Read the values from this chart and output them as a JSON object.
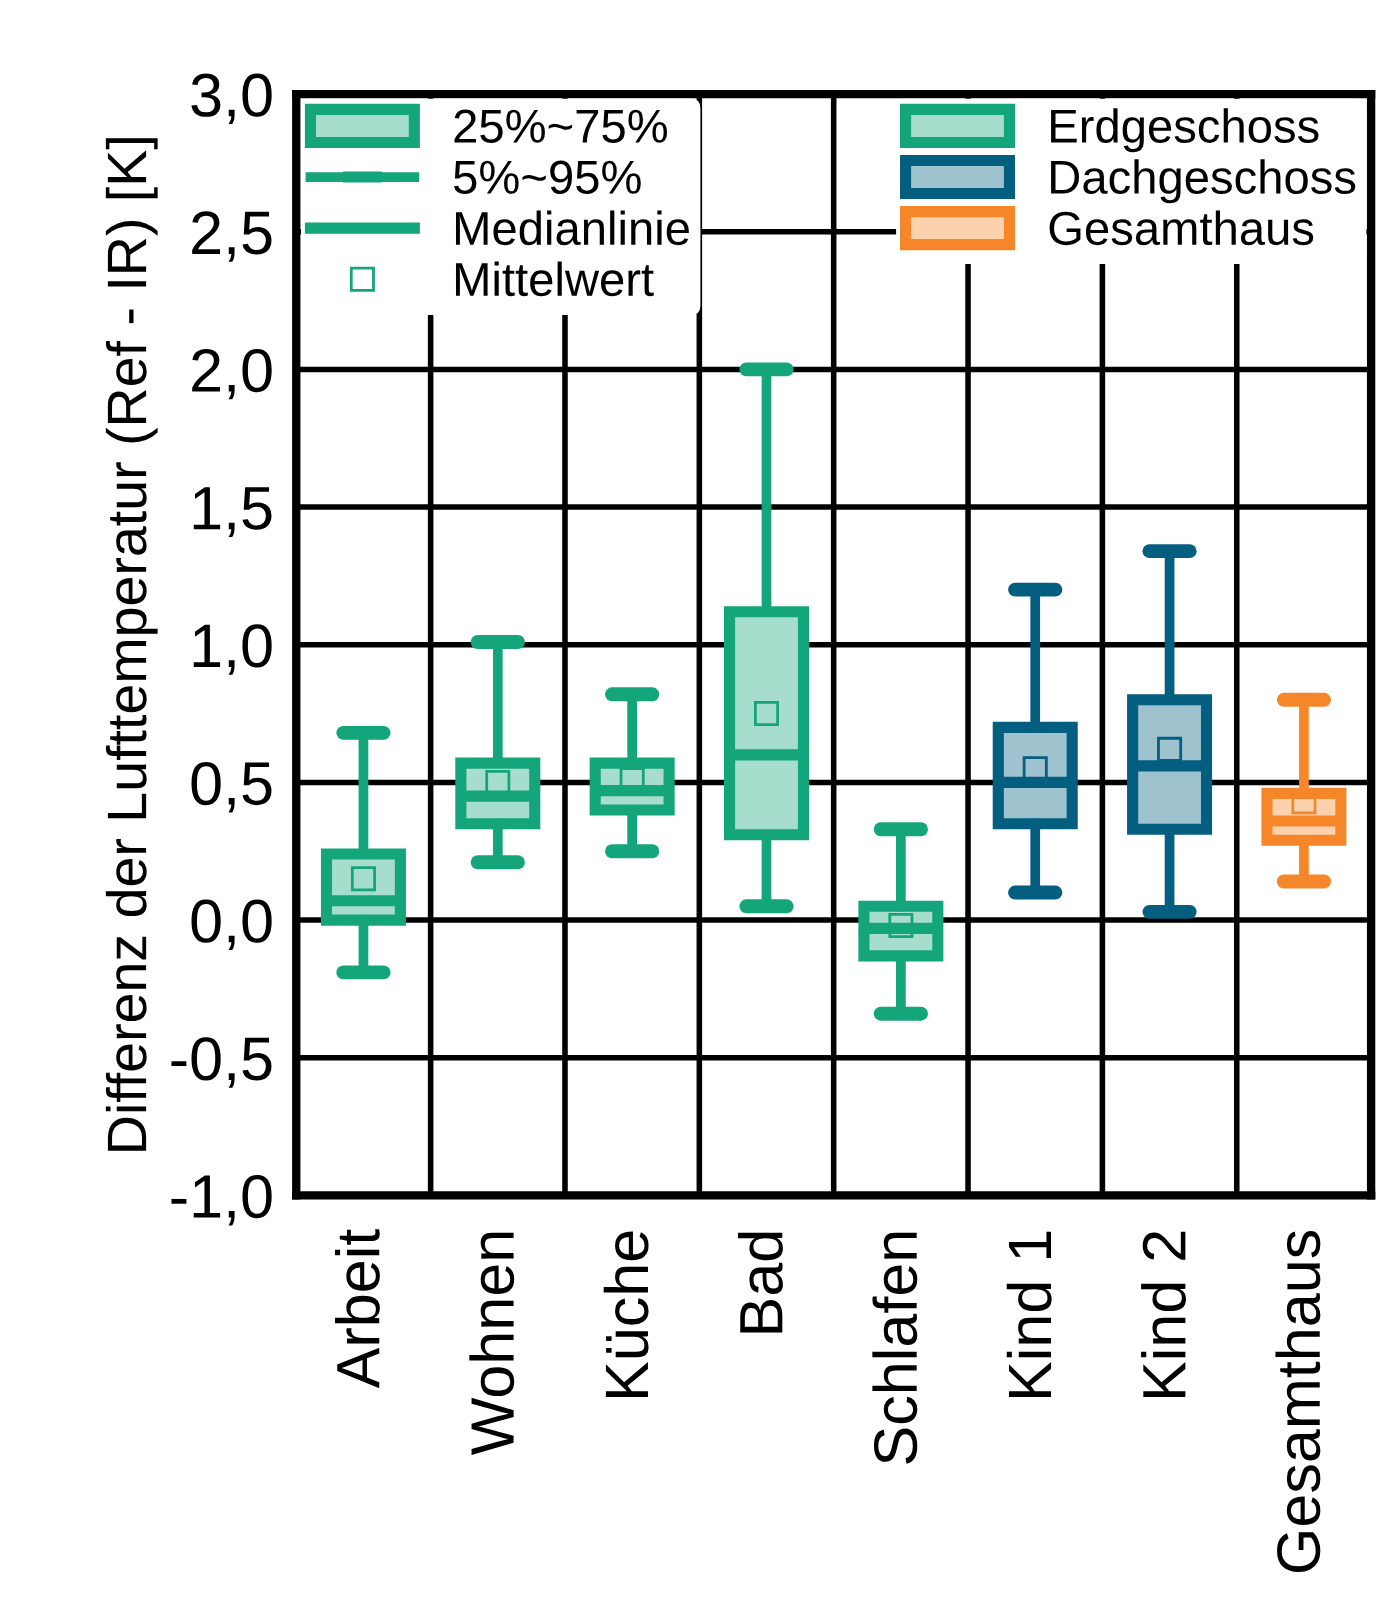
{
  "chart_data": {
    "type": "box",
    "ylabel": "Differenz der Lufttemperatur (Ref - IR) [K]",
    "categories": [
      "Arbeit",
      "Wohnen",
      "Küche",
      "Bad",
      "Schlafen",
      "Kind 1",
      "Kind 2",
      "Gesamthaus"
    ],
    "ylim": [
      -1.0,
      3.0
    ],
    "yticks": [
      {
        "value": -1.0,
        "label": "-1,0"
      },
      {
        "value": -0.5,
        "label": "-0,5"
      },
      {
        "value": 0.0,
        "label": "0,0"
      },
      {
        "value": 0.5,
        "label": "0,5"
      },
      {
        "value": 1.0,
        "label": "1,0"
      },
      {
        "value": 1.5,
        "label": "1,5"
      },
      {
        "value": 2.0,
        "label": "2,0"
      },
      {
        "value": 2.5,
        "label": "2,5"
      },
      {
        "value": 3.0,
        "label": "3,0"
      }
    ],
    "grid": true,
    "legend": "top",
    "marker": "square",
    "annotations": [
      "25%~75%",
      "5%~95%",
      "Medianlinie",
      "Mittelwert"
    ],
    "series": [
      {
        "name": "Erdgeschoss",
        "color": "#14a57a",
        "boxes": [
          {
            "low": -0.19,
            "q1": 0.0,
            "median": 0.07,
            "q3": 0.24,
            "high": 0.68,
            "mean": 0.15
          },
          {
            "low": 0.21,
            "q1": 0.35,
            "median": 0.45,
            "q3": 0.57,
            "high": 1.01,
            "mean": 0.5
          },
          {
            "low": 0.25,
            "q1": 0.4,
            "median": 0.47,
            "q3": 0.57,
            "high": 0.82,
            "mean": 0.51
          },
          {
            "low": 0.05,
            "q1": 0.31,
            "median": 0.6,
            "q3": 1.12,
            "high": 2.0,
            "mean": 0.75
          },
          {
            "low": -0.34,
            "q1": -0.13,
            "median": -0.03,
            "q3": 0.05,
            "high": 0.33,
            "mean": -0.02
          },
          null,
          null,
          null
        ]
      },
      {
        "name": "Dachgeschoss",
        "color": "#035e80",
        "boxes": [
          null,
          null,
          null,
          null,
          null,
          {
            "low": 0.1,
            "q1": 0.35,
            "median": 0.5,
            "q3": 0.7,
            "high": 1.2,
            "mean": 0.55
          },
          {
            "low": 0.03,
            "q1": 0.33,
            "median": 0.56,
            "q3": 0.8,
            "high": 1.34,
            "mean": 0.62
          },
          null
        ]
      },
      {
        "name": "Gesamthaus",
        "color": "#f5872a",
        "boxes": [
          null,
          null,
          null,
          null,
          null,
          null,
          null,
          {
            "low": 0.14,
            "q1": 0.29,
            "median": 0.36,
            "q3": 0.46,
            "high": 0.8,
            "mean": 0.43
          }
        ]
      }
    ]
  }
}
